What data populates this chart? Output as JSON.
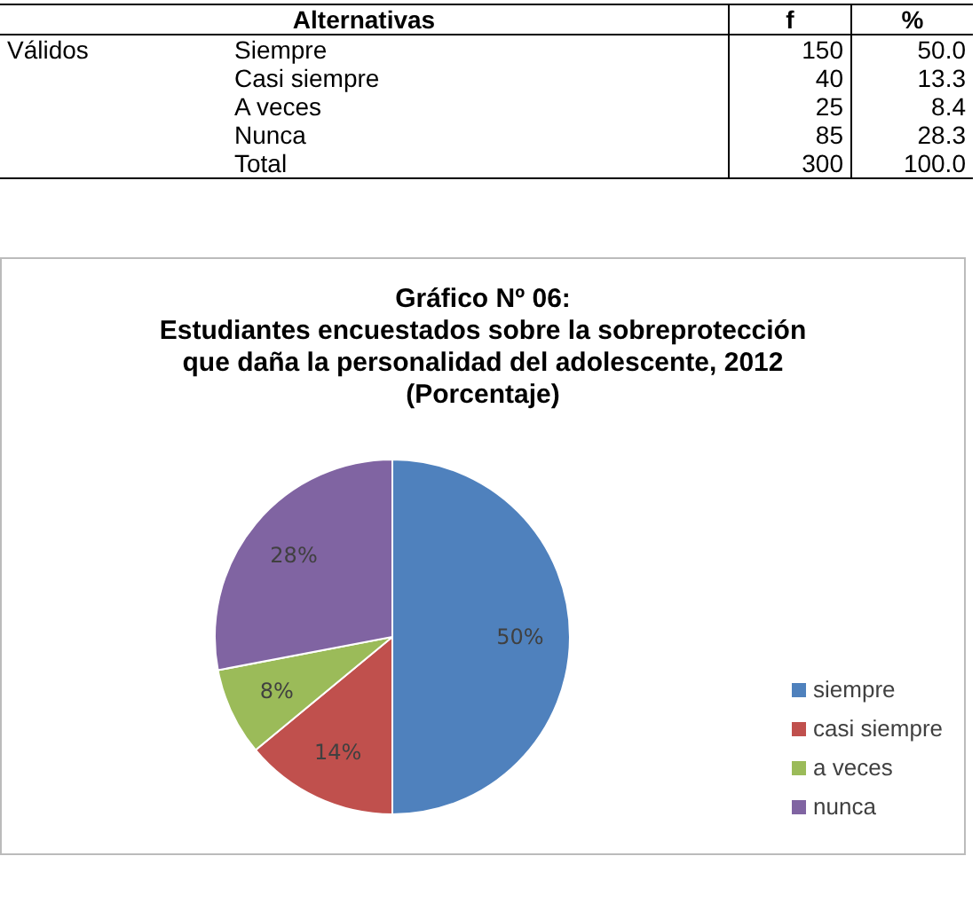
{
  "chart_data": [
    {
      "type": "other",
      "xlabel": "Alternativas",
      "annotations": [
        "Válidos"
      ],
      "categories": [
        "Siempre",
        "Casi siempre",
        "A veces",
        "Nunca",
        "Total"
      ],
      "series": [
        {
          "name": "f",
          "values": [
            150,
            40,
            25,
            85,
            300
          ]
        },
        {
          "name": "%",
          "values": [
            50.0,
            13.3,
            8.4,
            28.3,
            100.0
          ],
          "value_labels": [
            "50.0",
            "13.3",
            "8.4",
            "28.3",
            "100.0"
          ]
        }
      ],
      "data_labels": true
    },
    {
      "type": "pie",
      "title": "Gráfico Nº 06:\nEstudiantes encuestados sobre la sobreprotección\nque daña la personalidad del adolescente, 2012",
      "subtitle": "(Porcentaje)",
      "categories": [
        "siempre",
        "casi siempre",
        "a veces",
        "nunca"
      ],
      "values": [
        50,
        14,
        8,
        28
      ],
      "value_labels": [
        "50%",
        "14%",
        "8%",
        "28%"
      ],
      "colors": [
        "#4f81bd",
        "#c0504d",
        "#9bbb59",
        "#8064a2"
      ],
      "legend": "bottom right"
    }
  ]
}
